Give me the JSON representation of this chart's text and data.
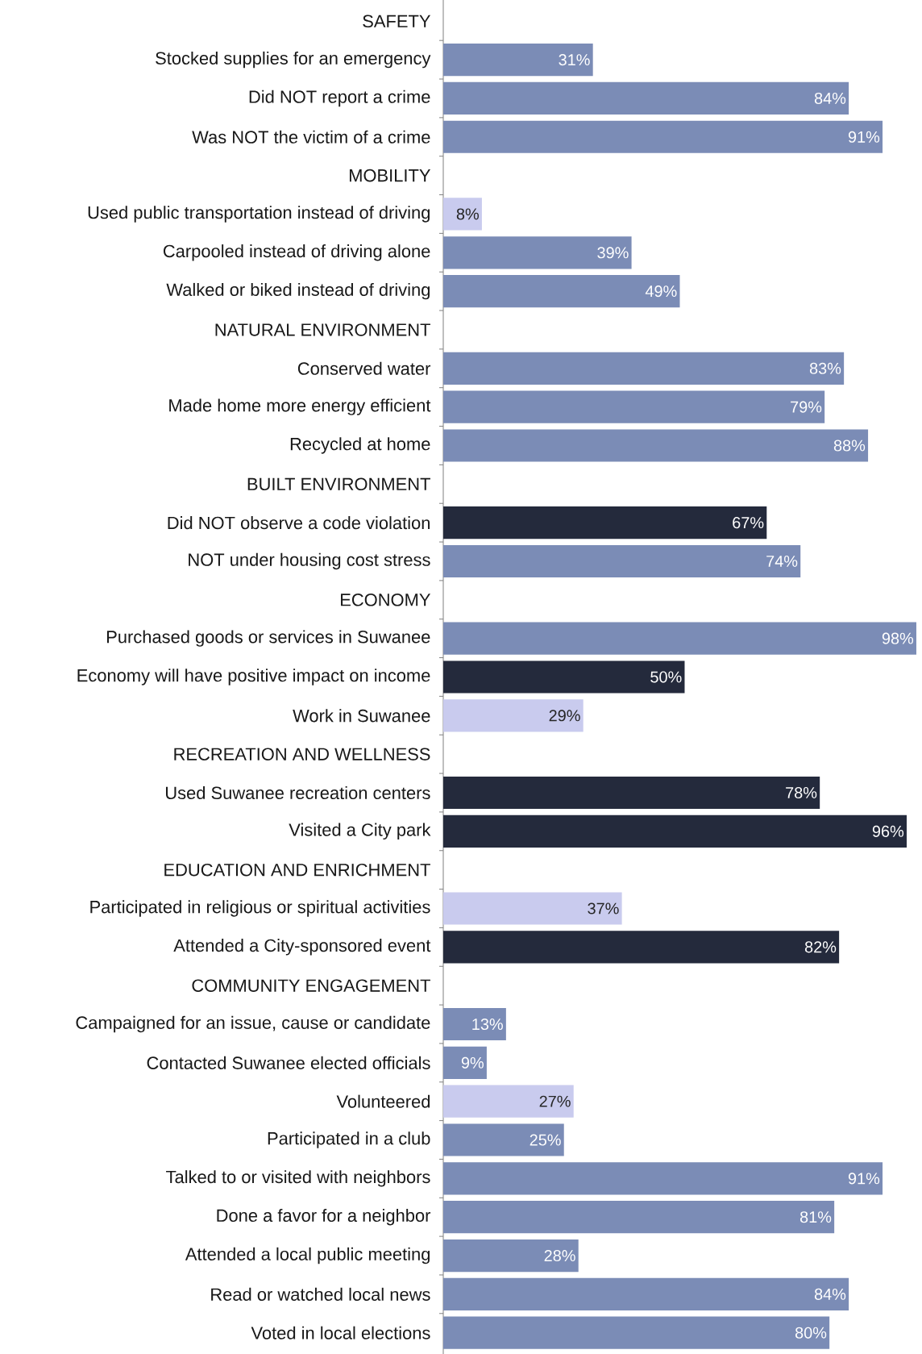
{
  "chart_data": {
    "type": "bar",
    "orientation": "horizontal",
    "categories": [
      "SAFETY",
      "Stocked supplies for an emergency",
      "Did NOT report a crime",
      "Was NOT the victim of a crime",
      "MOBILITY",
      "Used public transportation instead of driving",
      "Carpooled instead of driving alone",
      "Walked or biked instead of driving",
      "NATURAL ENVIRONMENT",
      "Conserved water",
      "Made home more energy efficient",
      "Recycled at home",
      "BUILT ENVIRONMENT",
      "Did NOT observe a code violation",
      "NOT under housing cost stress",
      "ECONOMY",
      "Purchased goods or services in Suwanee",
      "Economy will have positive impact on income",
      "Work in Suwanee",
      "RECREATION AND WELLNESS",
      "Used Suwanee recreation centers",
      "Visited a City park",
      "EDUCATION AND ENRICHMENT",
      "Participated in religious or spiritual activities",
      "Attended a City-sponsored event",
      "COMMUNITY ENGAGEMENT",
      "Campaigned for an issue, cause or candidate",
      "Contacted Suwanee elected officials",
      "Volunteered",
      "Participated in a club",
      "Talked to or visited with neighbors",
      "Done a favor for a neighbor",
      "Attended a local public meeting",
      "Read or watched local news",
      "Voted in local elections"
    ],
    "values": [
      null,
      31,
      84,
      91,
      null,
      8,
      39,
      49,
      null,
      83,
      79,
      88,
      null,
      67,
      74,
      null,
      98,
      50,
      29,
      null,
      78,
      96,
      null,
      37,
      82,
      null,
      13,
      9,
      27,
      25,
      91,
      81,
      28,
      84,
      80
    ],
    "value_labels": [
      null,
      "31%",
      "84%",
      "91%",
      null,
      "8%",
      "39%",
      "49%",
      null,
      "83%",
      "79%",
      "88%",
      null,
      "67%",
      "74%",
      null,
      "98%",
      "50%",
      "29%",
      null,
      "78%",
      "96%",
      null,
      "37%",
      "82%",
      null,
      "13%",
      "9%",
      "27%",
      "25%",
      "91%",
      "81%",
      "28%",
      "84%",
      "80%"
    ],
    "colors": [
      null,
      "#7b8cb6",
      "#7b8cb6",
      "#7b8cb6",
      null,
      "#c9cbee",
      "#7b8cb6",
      "#7b8cb6",
      null,
      "#7b8cb6",
      "#7b8cb6",
      "#7b8cb6",
      null,
      "#242a3c",
      "#7b8cb6",
      null,
      "#7b8cb6",
      "#242a3c",
      "#c9cbee",
      null,
      "#242a3c",
      "#242a3c",
      null,
      "#c9cbee",
      "#242a3c",
      null,
      "#7b8cb6",
      "#7b8cb6",
      "#c9cbee",
      "#7b8cb6",
      "#7b8cb6",
      "#7b8cb6",
      "#7b8cb6",
      "#7b8cb6",
      "#7b8cb6"
    ]
  }
}
